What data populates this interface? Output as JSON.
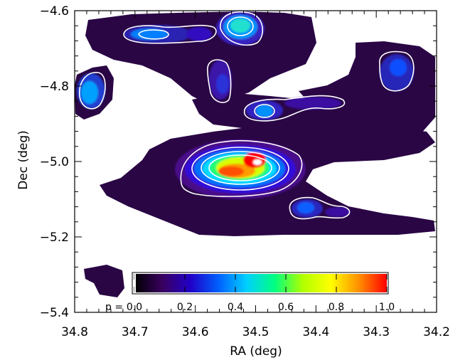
{
  "chart_data": {
    "type": "heatmap",
    "title": "",
    "xlabel": "RA (deg)",
    "ylabel": "Dec (deg)",
    "xlim": [
      34.8,
      34.2
    ],
    "ylim": [
      -5.4,
      -4.6
    ],
    "x_reversed": true,
    "xticks": [
      "34.8",
      "34.7",
      "34.6",
      "34.5",
      "34.4",
      "34.3",
      "34.2"
    ],
    "xtick_values": [
      34.8,
      34.7,
      34.6,
      34.5,
      34.4,
      34.3,
      34.2
    ],
    "yticks": [
      "-4.6",
      "-4.8",
      "-5.0",
      "-5.2",
      "-5.4"
    ],
    "ytick_values": [
      -4.6,
      -4.8,
      -5.0,
      -5.2,
      -5.4
    ],
    "colorbar": {
      "prefix": "p =",
      "ticks": [
        "0.0",
        "0.2",
        "0.4",
        "0.6",
        "0.8",
        "1.0"
      ],
      "tick_values": [
        0.0,
        0.2,
        0.4,
        0.6,
        0.8,
        1.0
      ],
      "range": [
        0.0,
        1.0
      ],
      "colormap": [
        "#000000",
        "#3a0060",
        "#2000c8",
        "#0060ff",
        "#00d0ff",
        "#00ff80",
        "#b0ff00",
        "#ffff00",
        "#ff9000",
        "#ff0000"
      ]
    },
    "peaks": [
      {
        "ra": 34.495,
        "dec": -5.0,
        "p": 1.0
      },
      {
        "ra": 34.53,
        "dec": -5.02,
        "p": 0.85
      },
      {
        "ra": 34.52,
        "dec": -4.64,
        "p": 0.45
      },
      {
        "ra": 34.775,
        "dec": -4.83,
        "p": 0.35
      },
      {
        "ra": 34.66,
        "dec": -4.67,
        "p": 0.25
      },
      {
        "ra": 34.585,
        "dec": -4.68,
        "p": 0.2
      },
      {
        "ra": 34.485,
        "dec": -4.875,
        "p": 0.25
      },
      {
        "ra": 34.325,
        "dec": -4.73,
        "p": 0.22
      },
      {
        "ra": 34.425,
        "dec": -5.12,
        "p": 0.2
      },
      {
        "ra": 34.565,
        "dec": -4.8,
        "p": 0.14
      },
      {
        "ra": 34.38,
        "dec": -4.83,
        "p": 0.12
      }
    ],
    "contours": "white",
    "grid": false
  }
}
